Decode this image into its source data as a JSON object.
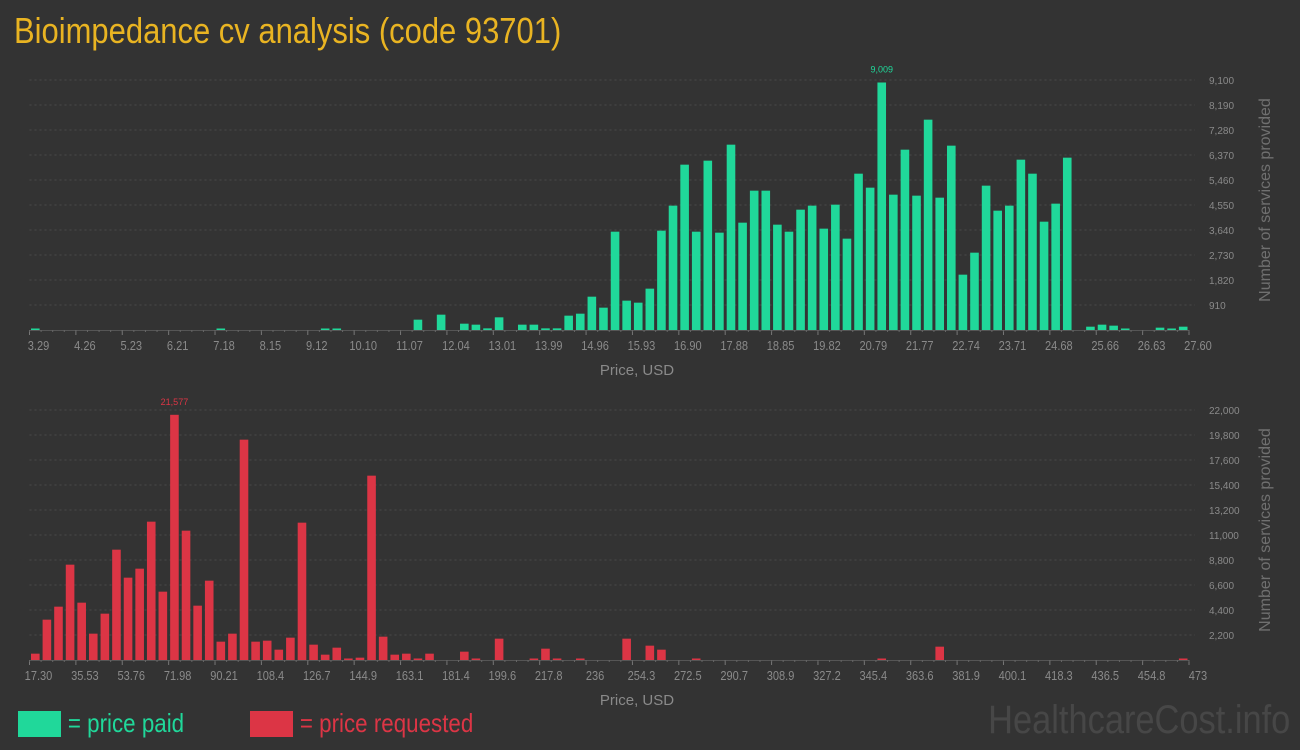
{
  "title": "Bioimpedance cv analysis (code 93701)",
  "colors": {
    "paid": "#20d89a",
    "requested": "#dc3545",
    "title": "#e9b422",
    "background": "#333333"
  },
  "legend": {
    "paid_label": "= price paid",
    "requested_label": "= price requested"
  },
  "watermark": "HealthcareCost.info",
  "chart_data": [
    {
      "type": "bar",
      "series": [
        {
          "name": "price paid",
          "color": "#20d89a"
        }
      ],
      "xlabel": "Price, USD",
      "ylabel": "Number of services provided",
      "xlim": [
        3.29,
        27.6
      ],
      "ylim": [
        0,
        9100
      ],
      "grid": true,
      "max_label": "9,009",
      "max_value": 9009,
      "x_tick_labels": [
        "3.29",
        "4.26",
        "5.23",
        "6.21",
        "7.18",
        "8.15",
        "9.12",
        "10.10",
        "11.07",
        "12.04",
        "13.01",
        "13.99",
        "14.96",
        "15.93",
        "16.90",
        "17.88",
        "18.85",
        "19.82",
        "20.79",
        "21.77",
        "22.74",
        "23.71",
        "24.68",
        "25.66",
        "26.63",
        "27.60"
      ],
      "y_ticks": [
        910,
        1820,
        2730,
        3640,
        4550,
        5460,
        6370,
        7280,
        8190,
        9100
      ],
      "y_tick_labels": [
        "910",
        "1,820",
        "2,730",
        "3,640",
        "4,550",
        "5,460",
        "6,370",
        "7,280",
        "8,190",
        "9,100"
      ],
      "values": [
        30,
        0,
        0,
        0,
        0,
        0,
        0,
        0,
        0,
        0,
        0,
        0,
        0,
        0,
        0,
        0,
        30,
        0,
        0,
        0,
        0,
        0,
        0,
        0,
        0,
        30,
        30,
        0,
        0,
        0,
        0,
        0,
        0,
        376,
        0,
        558,
        0,
        230,
        194,
        60,
        461,
        0,
        194,
        194,
        60,
        60,
        522,
        594,
        1213,
        813,
        3579,
        1068,
        995,
        1505,
        3616,
        4526,
        6018,
        3579,
        6164,
        3543,
        6746,
        3907,
        5072,
        5072,
        3834,
        3579,
        4380,
        4526,
        3689,
        4562,
        3325,
        5690,
        5181,
        9009,
        4926,
        6564,
        4890,
        7656,
        4817,
        6710,
        2014,
        2815,
        5254,
        4344,
        4526,
        6200,
        5690,
        3943,
        4599,
        6273,
        0,
        121,
        194,
        158,
        24,
        0,
        0,
        85,
        24,
        121
      ]
    },
    {
      "type": "bar",
      "series": [
        {
          "name": "price requested",
          "color": "#dc3545"
        }
      ],
      "xlabel": "Price, USD",
      "ylabel": "Number of services provided",
      "xlim": [
        17.3,
        473
      ],
      "ylim": [
        0,
        22000
      ],
      "grid": true,
      "max_label": "21,577",
      "max_value": 21577,
      "x_tick_labels": [
        "17.30",
        "35.53",
        "53.76",
        "71.98",
        "90.21",
        "108.4",
        "126.7",
        "144.9",
        "163.1",
        "181.4",
        "199.6",
        "217.8",
        "236",
        "254.3",
        "272.5",
        "290.7",
        "308.9",
        "327.2",
        "345.4",
        "363.6",
        "381.9",
        "400.1",
        "418.3",
        "436.5",
        "454.8",
        "473"
      ],
      "y_ticks": [
        2200,
        4400,
        6600,
        8800,
        11000,
        13200,
        15400,
        17600,
        19800,
        22000
      ],
      "y_tick_labels": [
        "2,200",
        "4,400",
        "6,600",
        "8,800",
        "11,000",
        "13,200",
        "15,400",
        "17,600",
        "19,800",
        "22,000"
      ],
      "values": [
        557,
        3549,
        4693,
        8389,
        5045,
        2317,
        4077,
        9709,
        7245,
        8037,
        12173,
        6013,
        21577,
        11381,
        4781,
        6981,
        1613,
        2317,
        19389,
        1613,
        1701,
        909,
        1965,
        12085,
        1349,
        469,
        1085,
        30,
        205,
        16221,
        2053,
        469,
        557,
        30,
        557,
        0,
        0,
        733,
        30,
        0,
        1877,
        0,
        0,
        117,
        997,
        30,
        0,
        117,
        0,
        0,
        0,
        1877,
        0,
        1261,
        909,
        0,
        0,
        30,
        0,
        0,
        0,
        0,
        0,
        0,
        0,
        0,
        0,
        0,
        0,
        0,
        0,
        0,
        0,
        30,
        0,
        0,
        0,
        0,
        1173,
        0,
        0,
        0,
        0,
        0,
        0,
        0,
        0,
        0,
        0,
        0,
        0,
        0,
        0,
        0,
        0,
        0,
        0,
        0,
        0,
        30
      ]
    }
  ]
}
